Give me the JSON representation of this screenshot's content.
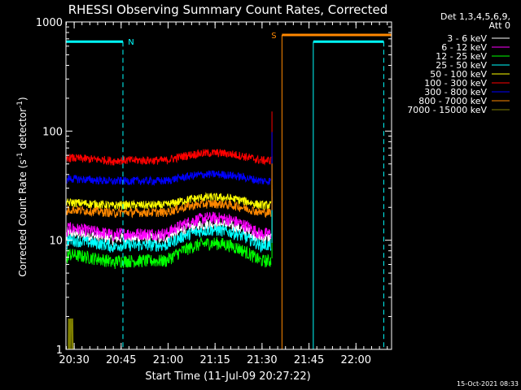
{
  "chart_data": {
    "type": "line",
    "title": "RHESSI Observing Summary Count Rates, Corrected",
    "xlabel": "Start Time (11-Jul-09 20:27:22)",
    "ylabel": "Corrected Count Rate (s",
    "ylabel_sup1": "-1",
    "ylabel_mid": " detector",
    "ylabel_sup2": "-1",
    "ylabel_end": ")",
    "y_scale": "log",
    "ylim": [
      1,
      1000
    ],
    "xlim_minutes": [
      0,
      104
    ],
    "x_ticks": [
      {
        "minute": 2.63,
        "label": "20:30"
      },
      {
        "minute": 17.63,
        "label": "20:45"
      },
      {
        "minute": 32.63,
        "label": "21:00"
      },
      {
        "minute": 47.63,
        "label": "21:15"
      },
      {
        "minute": 62.63,
        "label": "21:30"
      },
      {
        "minute": 77.63,
        "label": "21:45"
      },
      {
        "minute": 92.63,
        "label": "22:00"
      }
    ],
    "y_ticks": [
      {
        "value": 1,
        "label": "1"
      },
      {
        "value": 10,
        "label": "10"
      },
      {
        "value": 100,
        "label": "100"
      },
      {
        "value": 1000,
        "label": "1000"
      }
    ],
    "legend_header": [
      "Det 1,3,4,5,6,9,",
      "Att 0"
    ],
    "legend_position": "right",
    "series": [
      {
        "name": "3 - 6 keV",
        "color": "#ffffff",
        "level": 10.5,
        "amp": 0.35
      },
      {
        "name": "6 - 12 keV",
        "color": "#ff00ff",
        "level": 11.5,
        "amp": 0.4
      },
      {
        "name": "12 - 25 keV",
        "color": "#00ff00",
        "level": 6.5,
        "amp": 0.45
      },
      {
        "name": "25 - 50 keV",
        "color": "#00ffff",
        "level": 9.0,
        "amp": 0.38
      },
      {
        "name": "50 - 100 keV",
        "color": "#ffff00",
        "level": 21.0,
        "amp": 0.18
      },
      {
        "name": "100 - 300 keV",
        "color": "#ff0000",
        "level": 54.0,
        "amp": 0.17
      },
      {
        "name": "300 - 800 keV",
        "color": "#0000ff",
        "level": 35.0,
        "amp": 0.15
      },
      {
        "name": "800 - 7000 keV",
        "color": "#ff8800",
        "level": 18.0,
        "amp": 0.2
      },
      {
        "name": "7000 - 15000 keV",
        "color": "#808000",
        "level": 1.0,
        "amp": 0.0
      }
    ],
    "flags": [
      {
        "label": "N",
        "color": "#00ffff",
        "start_minute": 0,
        "end_minute": 18.2,
        "level": 660
      },
      {
        "label": "S",
        "color": "#ff8800",
        "start_minute": 69.0,
        "end_minute": 104,
        "level": 760
      },
      {
        "label": "",
        "color": "#00ffff",
        "start_minute": 79.0,
        "end_minute": 101.5,
        "level": 660
      }
    ],
    "timestamp": "15-Oct-2021 08:33"
  }
}
